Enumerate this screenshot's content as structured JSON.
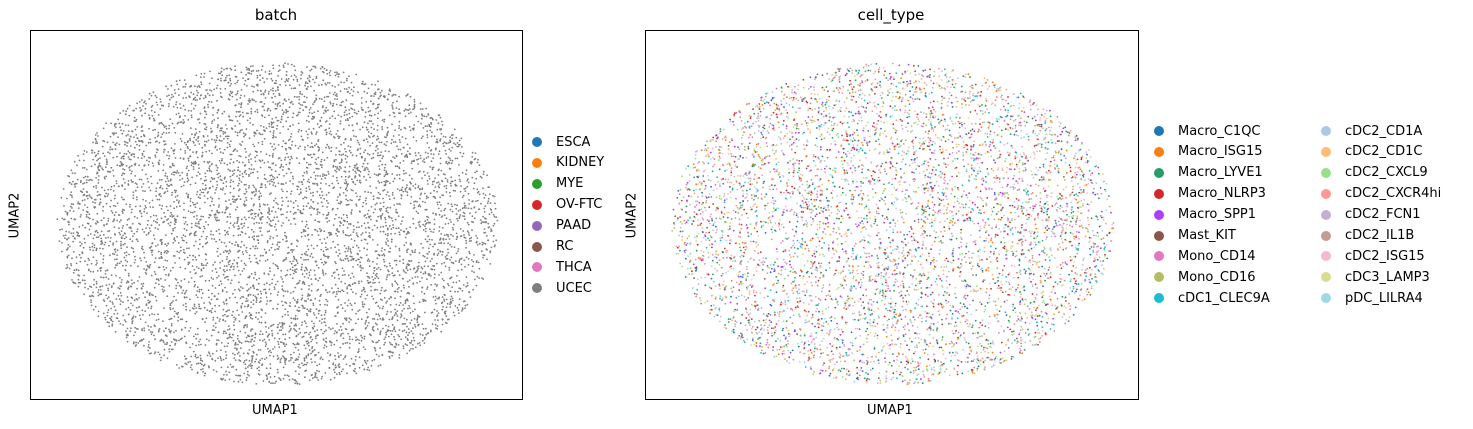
{
  "chart_data": [
    {
      "type": "scatter",
      "title": "batch",
      "xlabel": "UMAP1",
      "ylabel": "UMAP2",
      "grid": false,
      "x_ticks": false,
      "y_ticks": false,
      "legend_placement": "right",
      "shape": "ellipse",
      "point_color": "#7f7f7f",
      "approx_points": 9000,
      "series": [
        {
          "name": "ESCA",
          "color": "#1f77b4"
        },
        {
          "name": "KIDNEY",
          "color": "#ff7f0e"
        },
        {
          "name": "MYE",
          "color": "#2ca02c"
        },
        {
          "name": "OV-FTC",
          "color": "#d62728"
        },
        {
          "name": "PAAD",
          "color": "#9467bd"
        },
        {
          "name": "RC",
          "color": "#8c564b"
        },
        {
          "name": "THCA",
          "color": "#e377c2"
        },
        {
          "name": "UCEC",
          "color": "#7f7f7f"
        }
      ]
    },
    {
      "type": "scatter",
      "title": "cell_type",
      "xlabel": "UMAP1",
      "ylabel": "UMAP2",
      "grid": false,
      "x_ticks": false,
      "y_ticks": false,
      "legend_placement": "right",
      "legend_columns": 2,
      "shape": "ellipse",
      "approx_points": 9000,
      "series": [
        {
          "name": "Macro_C1QC",
          "color": "#1f77b4"
        },
        {
          "name": "Macro_ISG15",
          "color": "#ff7f0e"
        },
        {
          "name": "Macro_LYVE1",
          "color": "#279e68"
        },
        {
          "name": "Macro_NLRP3",
          "color": "#d62728"
        },
        {
          "name": "Macro_SPP1",
          "color": "#aa40fc"
        },
        {
          "name": "Mast_KIT",
          "color": "#8c564b"
        },
        {
          "name": "Mono_CD14",
          "color": "#e377c2"
        },
        {
          "name": "Mono_CD16",
          "color": "#b5bd61"
        },
        {
          "name": "cDC1_CLEC9A",
          "color": "#17becf"
        },
        {
          "name": "cDC2_CD1A",
          "color": "#aec7e8"
        },
        {
          "name": "cDC2_CD1C",
          "color": "#ffbb78"
        },
        {
          "name": "cDC2_CXCL9",
          "color": "#98df8a"
        },
        {
          "name": "cDC2_CXCR4hi",
          "color": "#ff9896"
        },
        {
          "name": "cDC2_FCN1",
          "color": "#c5b0d5"
        },
        {
          "name": "cDC2_IL1B",
          "color": "#c49c94"
        },
        {
          "name": "cDC2_ISG15",
          "color": "#f7b6d2"
        },
        {
          "name": "cDC3_LAMP3",
          "color": "#dbdb8d"
        },
        {
          "name": "pDC_LILRA4",
          "color": "#9edae5"
        }
      ]
    }
  ]
}
